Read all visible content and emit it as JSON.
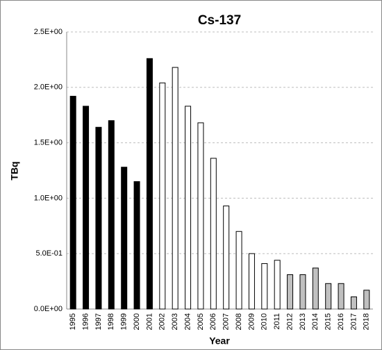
{
  "chart_data": {
    "type": "bar",
    "title": "Cs-137",
    "x_label": "Year",
    "y_label": "TBq",
    "categories": [
      "1995",
      "1996",
      "1997",
      "1998",
      "1999",
      "2000",
      "2001",
      "2002",
      "2003",
      "2004",
      "2005",
      "2006",
      "2007",
      "2008",
      "2009",
      "2010",
      "2011",
      "2012",
      "2013",
      "2014",
      "2015",
      "2016",
      "2017",
      "2018"
    ],
    "values": [
      1.92,
      1.83,
      1.64,
      1.7,
      1.28,
      1.15,
      2.26,
      2.04,
      2.18,
      1.83,
      1.68,
      1.36,
      0.93,
      0.7,
      0.5,
      0.41,
      0.44,
      0.31,
      0.31,
      0.37,
      0.23,
      0.23,
      0.11,
      0.17
    ],
    "colors": [
      "#000000",
      "#000000",
      "#000000",
      "#000000",
      "#000000",
      "#000000",
      "#000000",
      "#ffffff",
      "#ffffff",
      "#ffffff",
      "#ffffff",
      "#ffffff",
      "#ffffff",
      "#ffffff",
      "#ffffff",
      "#ffffff",
      "#ffffff",
      "#c0c0c0",
      "#c0c0c0",
      "#c0c0c0",
      "#c0c0c0",
      "#c0c0c0",
      "#c0c0c0",
      "#c0c0c0"
    ],
    "ylim": [
      0,
      2.5
    ],
    "yticks": [
      {
        "value": 0,
        "label": "0.0E+00"
      },
      {
        "value": 0.5,
        "label": "5.0E-01"
      },
      {
        "value": 1.0,
        "label": "1.0E+00"
      },
      {
        "value": 1.5,
        "label": "1.5E+00"
      },
      {
        "value": 2.0,
        "label": "2.0E+00"
      },
      {
        "value": 2.5,
        "label": "2.5E+00"
      }
    ],
    "grid": true
  }
}
